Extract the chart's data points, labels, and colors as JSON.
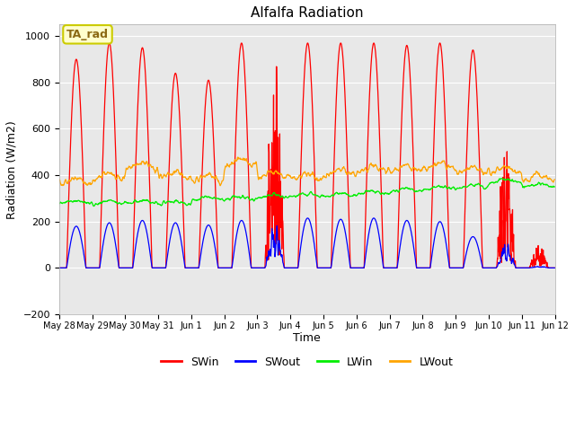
{
  "title": "Alfalfa Radiation",
  "xlabel": "Time",
  "ylabel": "Radiation (W/m2)",
  "ylim": [
    -200,
    1050
  ],
  "yticks": [
    -200,
    0,
    200,
    400,
    600,
    800,
    1000
  ],
  "annotation_text": "TA_rad",
  "bg_color": "#e8e8e8",
  "fig_bg_color": "#ffffff",
  "line_colors": {
    "SWin": "#ff0000",
    "SWout": "#0000ff",
    "LWin": "#00ee00",
    "LWout": "#ffa500"
  },
  "legend_labels": [
    "SWin",
    "SWout",
    "LWin",
    "LWout"
  ],
  "num_days": 15,
  "dt_hours": 0.25,
  "SWin_peaks": [
    900,
    970,
    950,
    840,
    810,
    970,
    950,
    970,
    970,
    970,
    960,
    970,
    940,
    570,
    100
  ],
  "SWout_peaks": [
    180,
    195,
    205,
    195,
    185,
    205,
    210,
    215,
    210,
    215,
    205,
    200,
    135,
    120,
    10
  ],
  "LWin_base": [
    280,
    278,
    278,
    275,
    295,
    295,
    305,
    310,
    310,
    320,
    330,
    340,
    345,
    370,
    350
  ],
  "LWout_base": [
    360,
    385,
    430,
    390,
    375,
    445,
    390,
    385,
    400,
    415,
    420,
    430,
    410,
    410,
    380
  ],
  "cloud_days": [
    0,
    0,
    0,
    0,
    0,
    0,
    1,
    0,
    0,
    0,
    0,
    0,
    0,
    1,
    1
  ],
  "ticklabels": [
    "May 28",
    "May 29",
    "May 30",
    "May 31",
    "Jun 1",
    "Jun 2",
    "Jun 3",
    "Jun 4",
    "Jun 5",
    "Jun 6",
    "Jun 7",
    "Jun 8",
    "Jun 9",
    "Jun 10",
    "Jun 11",
    "Jun 12"
  ]
}
